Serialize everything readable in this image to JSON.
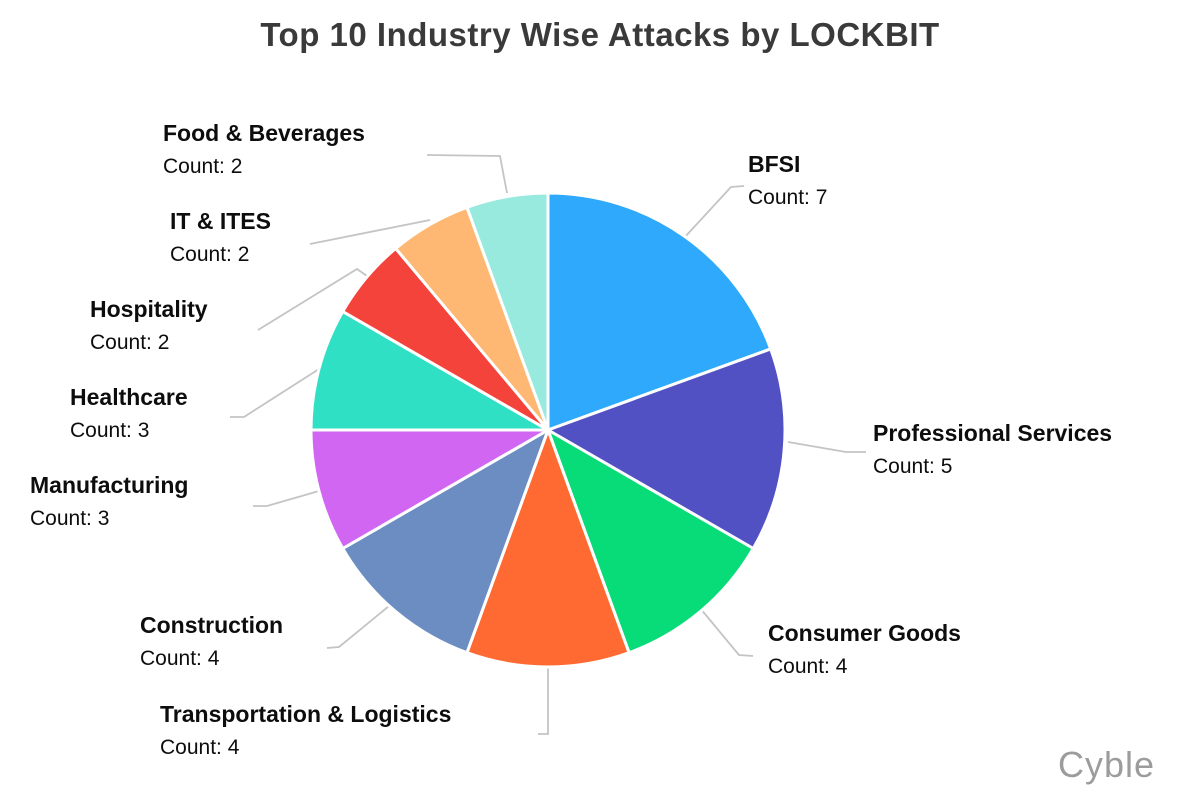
{
  "page": {
    "title": "Top 10 Industry Wise Attacks by LOCKBIT",
    "watermark": "Cyble",
    "background_color": "#ffffff"
  },
  "chart_data": {
    "type": "pie",
    "title": "Top 10 Industry Wise Attacks by LOCKBIT",
    "total": 36,
    "direction": "clockwise",
    "start_angle": "12-oclock",
    "legend": "none",
    "labels_position": "outside-with-leader-lines",
    "leader_line_color": "#c4c4c4",
    "slice_border_color": "#ffffff",
    "slices": [
      {
        "label": "BFSI",
        "value": 7,
        "count_text": "Count: 7",
        "color": "#2FA9FB"
      },
      {
        "label": "Professional Services",
        "value": 5,
        "count_text": "Count: 5",
        "color": "#5151C3"
      },
      {
        "label": "Consumer Goods",
        "value": 4,
        "count_text": "Count: 4",
        "color": "#08DC78"
      },
      {
        "label": "Transportation & Logistics",
        "value": 4,
        "count_text": "Count: 4",
        "color": "#FF6A33"
      },
      {
        "label": "Construction",
        "value": 4,
        "count_text": "Count: 4",
        "color": "#6B8DC1"
      },
      {
        "label": "Manufacturing",
        "value": 3,
        "count_text": "Count: 3",
        "color": "#D166F2"
      },
      {
        "label": "Healthcare",
        "value": 3,
        "count_text": "Count: 3",
        "color": "#2FE0C5"
      },
      {
        "label": "Hospitality",
        "value": 2,
        "count_text": "Count: 2",
        "color": "#F4433B"
      },
      {
        "label": "IT & ITES",
        "value": 2,
        "count_text": "Count: 2",
        "color": "#FFB873"
      },
      {
        "label": "Food & Beverages",
        "value": 2,
        "count_text": "Count: 2",
        "color": "#98EADF"
      }
    ]
  }
}
